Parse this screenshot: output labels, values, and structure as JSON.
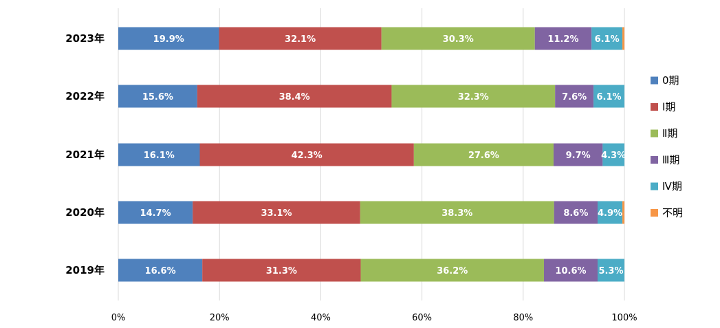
{
  "chart_data": {
    "type": "bar",
    "orientation": "horizontal",
    "stacked": "percent",
    "categories": [
      "2023年",
      "2022年",
      "2021年",
      "2020年",
      "2019年"
    ],
    "series": [
      {
        "name": "0期",
        "color": "#4f81bd",
        "values": [
          19.9,
          15.6,
          16.1,
          14.7,
          16.6
        ],
        "labels": [
          "19.9%",
          "15.6%",
          "16.1%",
          "14.7%",
          "16.6%"
        ]
      },
      {
        "name": "Ⅰ期",
        "color": "#c0504d",
        "values": [
          32.1,
          38.4,
          42.3,
          33.1,
          31.3
        ],
        "labels": [
          "32.1%",
          "38.4%",
          "42.3%",
          "33.1%",
          "31.3%"
        ]
      },
      {
        "name": "Ⅱ期",
        "color": "#9bbb59",
        "values": [
          30.3,
          32.3,
          27.6,
          38.3,
          36.2
        ],
        "labels": [
          "30.3%",
          "32.3%",
          "27.6%",
          "38.3%",
          "36.2%"
        ]
      },
      {
        "name": "Ⅲ期",
        "color": "#8064a2",
        "values": [
          11.2,
          7.6,
          9.7,
          8.6,
          10.6
        ],
        "labels": [
          "11.2%",
          "7.6%",
          "9.7%",
          "8.6%",
          "10.6%"
        ]
      },
      {
        "name": "Ⅳ期",
        "color": "#4bacc6",
        "values": [
          6.1,
          6.1,
          4.3,
          4.9,
          5.3
        ],
        "labels": [
          "6.1%",
          "6.1%",
          "4.3%",
          "4.9%",
          "5.3%"
        ]
      },
      {
        "name": "不明",
        "color": "#f79646",
        "values": [
          0.4,
          0.0,
          0.0,
          0.4,
          0.0
        ],
        "labels": [
          "",
          "",
          "",
          "",
          ""
        ]
      }
    ],
    "xlim": [
      0,
      100
    ],
    "xticks": [
      "0%",
      "20%",
      "40%",
      "60%",
      "80%",
      "100%"
    ],
    "grid": true,
    "legend_position": "right"
  }
}
